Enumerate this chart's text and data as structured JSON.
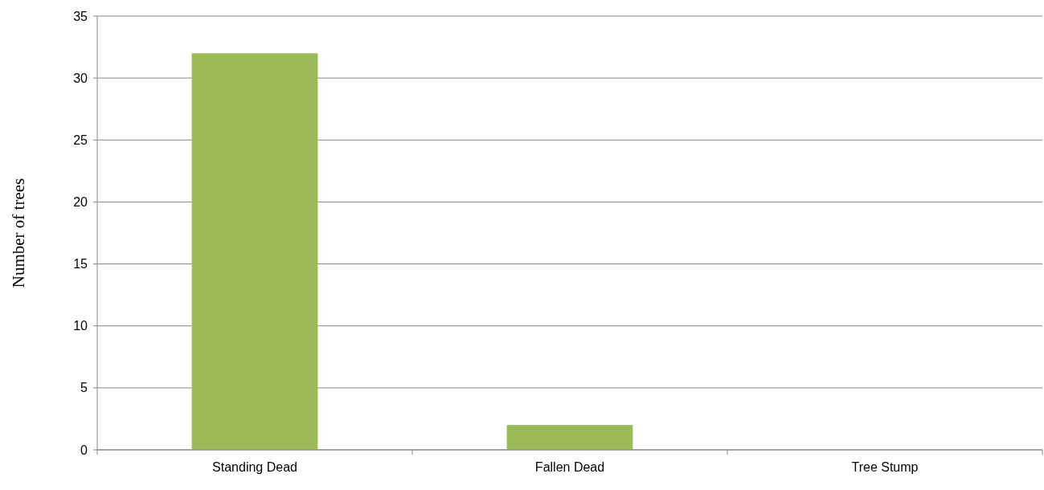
{
  "chart_data": {
    "type": "bar",
    "ylabel": "Number of trees",
    "categories": [
      "Standing Dead",
      "Fallen Dead",
      "Tree Stump"
    ],
    "values": [
      32,
      2,
      0
    ],
    "color": "#9bbb59",
    "ylim": [
      0,
      35
    ],
    "yticks": [
      0,
      5,
      10,
      15,
      20,
      25,
      30,
      35
    ],
    "grid": "y"
  }
}
